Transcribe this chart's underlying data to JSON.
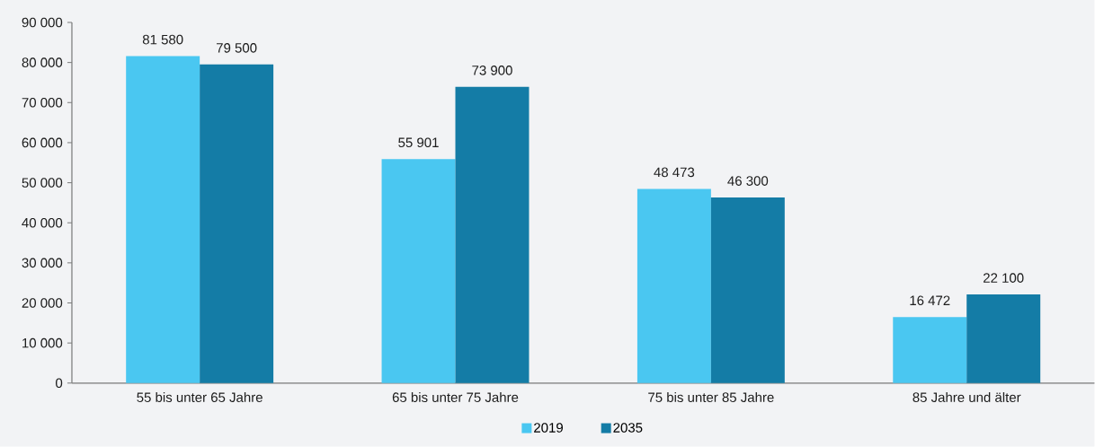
{
  "chart_data": {
    "type": "bar",
    "categories": [
      "55 bis unter 65 Jahre",
      "65 bis unter 75 Jahre",
      "75 bis unter 85 Jahre",
      "85 Jahre und älter"
    ],
    "series": [
      {
        "name": "2019",
        "color": "#4ac7f1",
        "values": [
          81580,
          55901,
          48473,
          16472
        ],
        "value_labels": [
          "81 580",
          "55 901",
          "48 473",
          "16 472"
        ]
      },
      {
        "name": "2035",
        "color": "#147ca6",
        "values": [
          79500,
          73900,
          46300,
          22100
        ],
        "value_labels": [
          "79 500",
          "73 900",
          "46 300",
          "22 100"
        ]
      }
    ],
    "ylim": [
      0,
      90000
    ],
    "yticks": [
      {
        "value": 0,
        "label": "0"
      },
      {
        "value": 10000,
        "label": "10 000"
      },
      {
        "value": 20000,
        "label": "20 000"
      },
      {
        "value": 30000,
        "label": "30 000"
      },
      {
        "value": 40000,
        "label": "40 000"
      },
      {
        "value": 50000,
        "label": "50 000"
      },
      {
        "value": 60000,
        "label": "60 000"
      },
      {
        "value": 70000,
        "label": "70 000"
      },
      {
        "value": 80000,
        "label": "80 000"
      },
      {
        "value": 90000,
        "label": "90 000"
      }
    ],
    "grid": false,
    "legend": "bottom"
  }
}
